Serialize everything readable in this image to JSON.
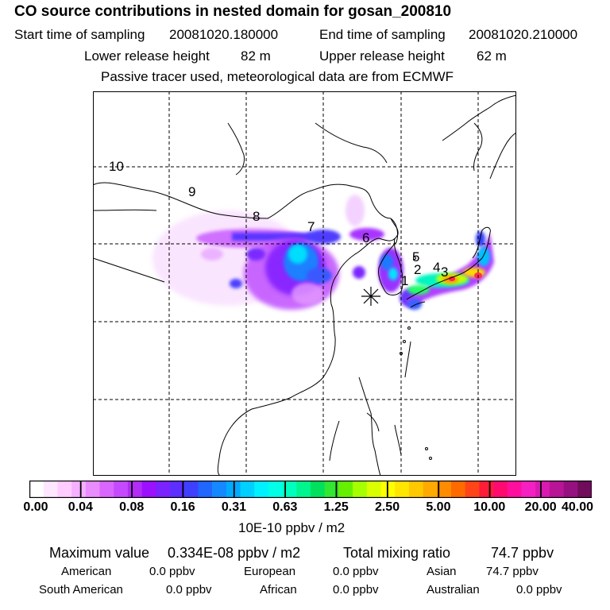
{
  "header": {
    "title": "CO  source contributions in nested domain for gosan_200810",
    "start_label": "Start time of sampling",
    "start_value": "20081020.180000",
    "end_label": "End time of sampling",
    "end_value": "20081020.210000",
    "lower_label": "Lower release height",
    "lower_value": "82 m",
    "upper_label": "Upper release height",
    "upper_value": "62 m",
    "note": "Passive tracer used, meteorological data are from ECMWF"
  },
  "map": {
    "receptor_symbol": "✳",
    "trajectory_labels": [
      "1",
      "2",
      "3",
      "4",
      "5",
      "6",
      "7",
      "8",
      "9",
      "10"
    ]
  },
  "colorbar": {
    "ticks": [
      "0.00",
      "0.04",
      "0.08",
      "0.16",
      "0.31",
      "0.63",
      "1.25",
      "2.50",
      "5.00",
      "10.00",
      "20.00",
      "40.00"
    ],
    "colors": [
      "#ffffff",
      "#ffe6ff",
      "#ffccff",
      "#f5b0ff",
      "#e98cff",
      "#d966ff",
      "#c54aff",
      "#b12cf5",
      "#9a10ff",
      "#7a22ff",
      "#5c2eff",
      "#3f3fff",
      "#2066ff",
      "#1488ff",
      "#00aaff",
      "#00cfff",
      "#00f0ff",
      "#00ffe6",
      "#00ffbf",
      "#00f58f",
      "#00e05c",
      "#32e632",
      "#66f000",
      "#a6ff00",
      "#d9ff00",
      "#ffff00",
      "#ffe600",
      "#ffc800",
      "#ffaa00",
      "#ff8c00",
      "#ff6a00",
      "#ff4418",
      "#ff1c36",
      "#ff0a6e",
      "#ff0f9e",
      "#f520c2",
      "#d91ab0",
      "#b81496",
      "#961080",
      "#700c5c"
    ],
    "unit": "10E-10 ppbv / m2"
  },
  "summary": {
    "max_label": "Maximum value",
    "max_value": "0.334E-08 ppbv / m2",
    "total_label": "Total mixing ratio",
    "total_value": "74.7 ppbv",
    "regions": [
      {
        "name": "American",
        "value": "0.0 ppbv"
      },
      {
        "name": "European",
        "value": "0.0 ppbv"
      },
      {
        "name": "Asian",
        "value": "74.7 ppbv"
      },
      {
        "name": "South American",
        "value": "0.0 ppbv"
      },
      {
        "name": "African",
        "value": "0.0 ppbv"
      },
      {
        "name": "Australian",
        "value": "0.0 ppbv"
      }
    ]
  }
}
